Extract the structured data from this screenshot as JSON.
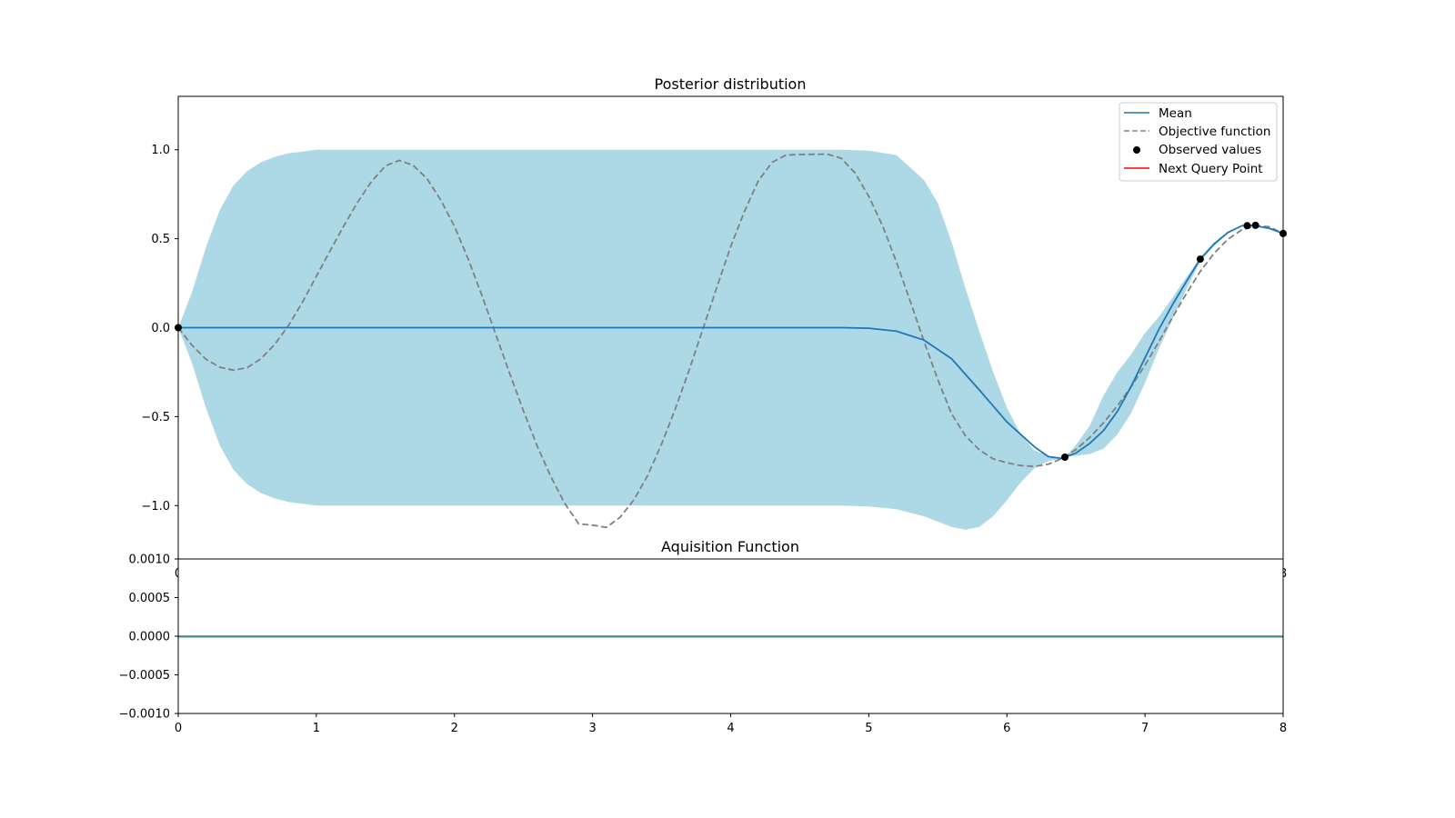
{
  "chart_data": [
    {
      "type": "line",
      "title": "Posterior distribution",
      "xlabel": "",
      "ylabel": "",
      "xlim": [
        0,
        8
      ],
      "ylim": [
        -1.3,
        1.3
      ],
      "yticks": [
        1.0,
        0.5,
        0.0,
        -0.5,
        -1.0
      ],
      "ytick_labels": [
        "1.0",
        "0.5",
        "0.0",
        "−0.5",
        "−1.0"
      ],
      "xticks": [
        0,
        8
      ],
      "xtick_labels": [
        "0",
        "8"
      ],
      "grid": false,
      "legend": {
        "placement": "top-right",
        "entries": [
          {
            "label": "Mean",
            "style": "solid-line",
            "color": "#1f77b4"
          },
          {
            "label": "Objective function",
            "style": "dashed-line",
            "color": "#808080"
          },
          {
            "label": "Observed values",
            "style": "dot",
            "color": "#000000"
          },
          {
            "label": "Next Query Point",
            "style": "solid-line",
            "color": "#ff0000"
          }
        ]
      },
      "colors": {
        "mean": "#1f77b4",
        "objective": "#808080",
        "band": "#add8e6",
        "observed": "#000000"
      },
      "series": [
        {
          "name": "Objective function",
          "x": [
            0,
            0.1,
            0.2,
            0.3,
            0.4,
            0.5,
            0.6,
            0.7,
            0.8,
            0.9,
            1.0,
            1.1,
            1.2,
            1.3,
            1.4,
            1.5,
            1.6,
            1.7,
            1.8,
            1.9,
            2.0,
            2.1,
            2.2,
            2.3,
            2.4,
            2.5,
            2.6,
            2.7,
            2.8,
            2.9,
            3.0,
            3.1,
            3.2,
            3.3,
            3.4,
            3.5,
            3.6,
            3.7,
            3.8,
            3.9,
            4.0,
            4.1,
            4.2,
            4.3,
            4.4,
            4.5,
            4.6,
            4.7,
            4.8,
            4.9,
            5.0,
            5.1,
            5.2,
            5.3,
            5.4,
            5.5,
            5.6,
            5.7,
            5.8,
            5.9,
            6.0,
            6.1,
            6.2,
            6.3,
            6.4,
            6.5,
            6.6,
            6.7,
            6.8,
            6.9,
            7.0,
            7.1,
            7.2,
            7.3,
            7.4,
            7.5,
            7.6,
            7.7,
            7.8,
            7.9,
            8.0
          ],
          "y": [
            0,
            -0.099,
            -0.177,
            -0.222,
            -0.239,
            -0.225,
            -0.174,
            -0.093,
            0.014,
            0.144,
            0.289,
            0.433,
            0.574,
            0.706,
            0.822,
            0.909,
            0.94,
            0.913,
            0.838,
            0.718,
            0.569,
            0.385,
            0.179,
            -0.04,
            -0.258,
            -0.469,
            -0.667,
            -0.841,
            -0.99,
            -1.103,
            -1.11,
            -1.123,
            -1.065,
            -0.967,
            -0.829,
            -0.653,
            -0.454,
            -0.237,
            -0.005,
            0.227,
            0.456,
            0.654,
            0.825,
            0.929,
            0.97,
            0.973,
            0.974,
            0.975,
            0.952,
            0.87,
            0.737,
            0.572,
            0.369,
            0.149,
            -0.077,
            -0.292,
            -0.486,
            -0.608,
            -0.687,
            -0.737,
            -0.759,
            -0.775,
            -0.78,
            -0.767,
            -0.735,
            -0.685,
            -0.617,
            -0.534,
            -0.439,
            -0.332,
            -0.211,
            -0.079,
            0.059,
            0.192,
            0.316,
            0.418,
            0.497,
            0.549,
            0.573,
            0.567,
            0.529
          ]
        },
        {
          "name": "Mean",
          "x": [
            0,
            0.5,
            1,
            1.5,
            2,
            2.5,
            3,
            3.5,
            4,
            4.5,
            4.8,
            5.0,
            5.2,
            5.4,
            5.6,
            5.8,
            6.0,
            6.2,
            6.3,
            6.4,
            6.42,
            6.5,
            6.6,
            6.7,
            6.8,
            6.9,
            7.0,
            7.1,
            7.2,
            7.3,
            7.4,
            7.5,
            7.6,
            7.7,
            7.75,
            7.8,
            7.9,
            8.0
          ],
          "y": [
            0,
            0,
            0,
            0,
            0,
            0,
            0,
            0,
            0,
            0,
            0,
            -0.003,
            -0.02,
            -0.07,
            -0.175,
            -0.35,
            -0.53,
            -0.67,
            -0.725,
            -0.735,
            -0.728,
            -0.705,
            -0.65,
            -0.578,
            -0.47,
            -0.33,
            -0.17,
            -0.01,
            0.13,
            0.26,
            0.385,
            0.47,
            0.535,
            0.572,
            0.575,
            0.572,
            0.558,
            0.529
          ]
        }
      ],
      "uncertainty_band": {
        "x": [
          0,
          0.1,
          0.2,
          0.3,
          0.4,
          0.5,
          0.6,
          0.7,
          0.8,
          0.9,
          1.0,
          2.0,
          3.0,
          4.0,
          4.8,
          5.0,
          5.2,
          5.4,
          5.5,
          5.6,
          5.7,
          5.8,
          5.9,
          6.0,
          6.1,
          6.2,
          6.3,
          6.4,
          6.42,
          6.5,
          6.6,
          6.7,
          6.8,
          6.9,
          7.0,
          7.1,
          7.2,
          7.3,
          7.4,
          7.5,
          7.6,
          7.7,
          7.75,
          7.8,
          7.9,
          8.0
        ],
        "upper": [
          0,
          0.2,
          0.45,
          0.66,
          0.8,
          0.88,
          0.93,
          0.96,
          0.98,
          0.99,
          1.0,
          1.0,
          1.0,
          1.0,
          1.0,
          0.995,
          0.97,
          0.83,
          0.7,
          0.48,
          0.22,
          -0.02,
          -0.25,
          -0.45,
          -0.6,
          -0.69,
          -0.72,
          -0.735,
          -0.728,
          -0.66,
          -0.55,
          -0.38,
          -0.25,
          -0.15,
          -0.03,
          0.06,
          0.17,
          0.285,
          0.395,
          0.48,
          0.54,
          0.575,
          0.58,
          0.575,
          0.561,
          0.529
        ],
        "lower": [
          0,
          -0.2,
          -0.45,
          -0.66,
          -0.8,
          -0.88,
          -0.93,
          -0.96,
          -0.98,
          -0.99,
          -1.0,
          -1.0,
          -1.0,
          -1.0,
          -1.0,
          -1.005,
          -1.02,
          -1.06,
          -1.09,
          -1.12,
          -1.135,
          -1.12,
          -1.06,
          -0.97,
          -0.87,
          -0.79,
          -0.75,
          -0.735,
          -0.728,
          -0.72,
          -0.71,
          -0.68,
          -0.6,
          -0.48,
          -0.31,
          -0.12,
          0.05,
          0.215,
          0.375,
          0.46,
          0.53,
          0.569,
          0.57,
          0.569,
          0.555,
          0.529
        ]
      },
      "observed_points": {
        "name": "Observed values",
        "x": [
          0,
          6.42,
          7.4,
          7.74,
          7.8,
          8.0
        ],
        "y": [
          0,
          -0.728,
          0.385,
          0.573,
          0.575,
          0.529
        ]
      }
    },
    {
      "type": "line",
      "title": "Aquisition Function",
      "xlabel": "",
      "ylabel": "",
      "xlim": [
        0,
        8
      ],
      "ylim": [
        -0.001,
        0.001
      ],
      "yticks": [
        0.001,
        0.0005,
        0.0,
        -0.0005,
        -0.001
      ],
      "ytick_labels": [
        "0.0010",
        "0.0005",
        "0.0000",
        "−0.0005",
        "−0.0010"
      ],
      "xticks": [
        0,
        1,
        2,
        3,
        4,
        5,
        6,
        7,
        8
      ],
      "xtick_labels": [
        "0",
        "1",
        "2",
        "3",
        "4",
        "5",
        "6",
        "7",
        "8"
      ],
      "grid": false,
      "series": [
        {
          "color": "#1f77b4",
          "x": [
            0,
            8
          ],
          "y": [
            0,
            0
          ]
        },
        {
          "color": "#bcbd22",
          "x": [
            0,
            8
          ],
          "y": [
            0,
            0
          ]
        }
      ]
    }
  ]
}
